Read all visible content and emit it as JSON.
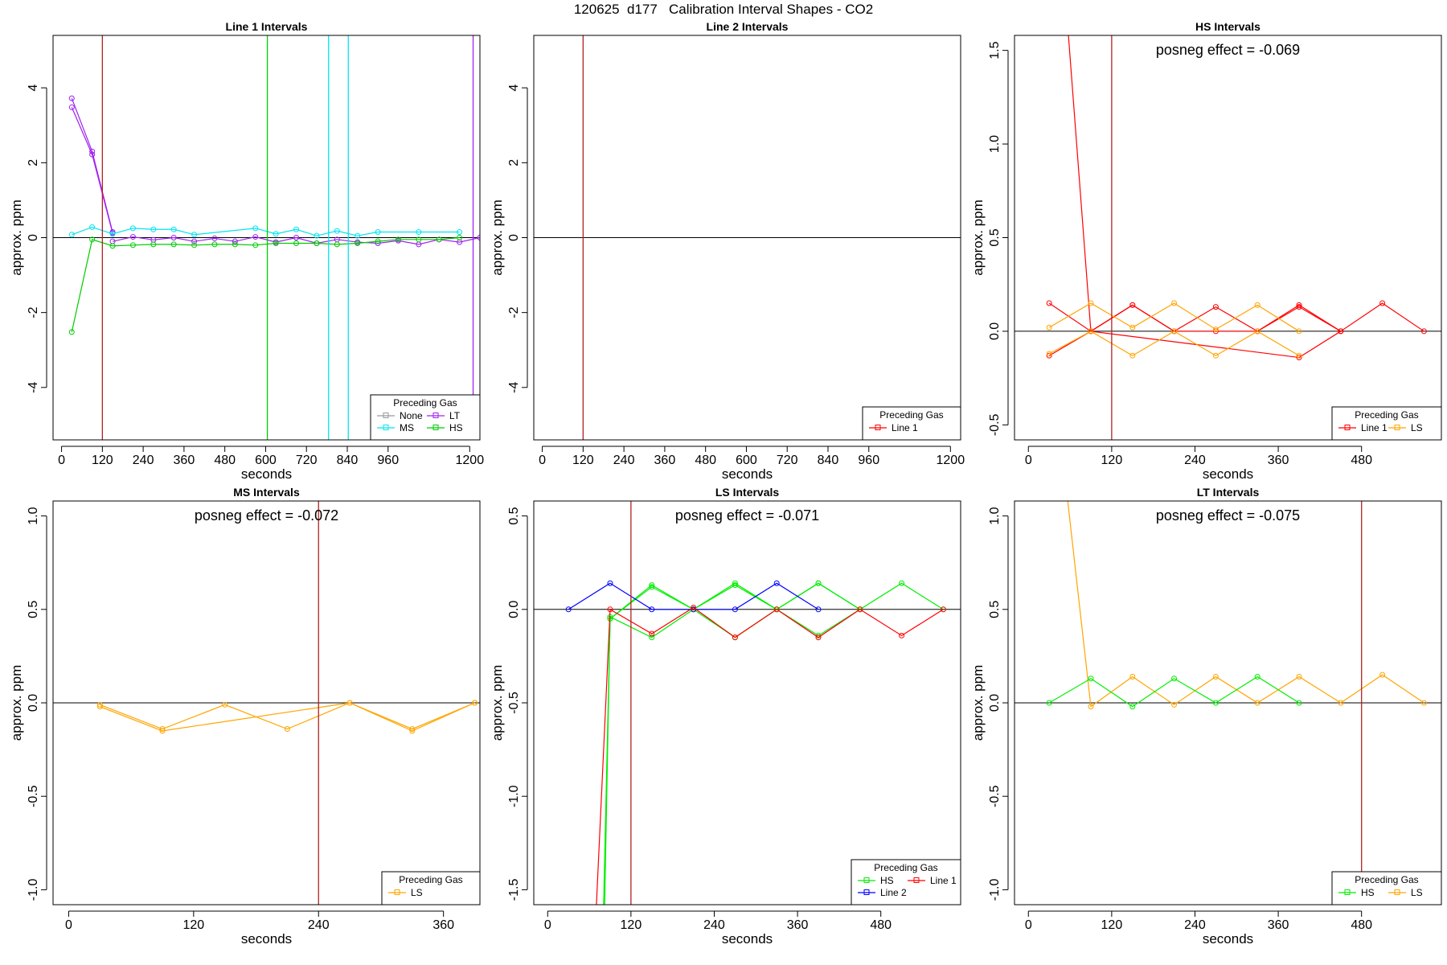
{
  "figure_title": "120625  d177   Calibration Interval Shapes - CO2",
  "chart_data": [
    {
      "type": "line",
      "title": "Line 1 Intervals",
      "xlabel": "seconds",
      "ylabel": "approx. ppm",
      "xlim": [
        -25,
        1230
      ],
      "ylim": [
        -5.4,
        5.4
      ],
      "xticks": [
        0,
        120,
        240,
        360,
        480,
        600,
        720,
        840,
        960,
        1200
      ],
      "xtick_labels": [
        "0",
        "120",
        "240",
        "360",
        "480",
        "600",
        "720",
        "840",
        "960",
        "1200"
      ],
      "yticks": [
        -4,
        -2,
        0,
        2,
        4
      ],
      "ytick_labels": [
        "-4",
        "-2",
        "0",
        "2",
        "4"
      ],
      "vlines": [
        {
          "x": 120,
          "color": "#b22222"
        },
        {
          "x": 605,
          "color": "#00cc00"
        },
        {
          "x": 785,
          "color": "#00e5ee"
        },
        {
          "x": 843,
          "color": "#00e5ee"
        },
        {
          "x": 1210,
          "color": "#a020f0"
        }
      ],
      "series": [
        {
          "name": "LT",
          "color": "#a020f0",
          "x": [
            30,
            90,
            150
          ],
          "y": [
            3.72,
            2.3,
            0.15
          ]
        },
        {
          "name": "LT",
          "color": "#a020f0",
          "x": [
            30,
            90,
            150
          ],
          "y": [
            3.48,
            2.22,
            0.12
          ]
        },
        {
          "name": "LT",
          "color": "#a020f0",
          "x": [
            150,
            210,
            270,
            330,
            390,
            450,
            510,
            570,
            630,
            690,
            750,
            810,
            870,
            930,
            990,
            1050,
            1110,
            1170,
            1230
          ],
          "y": [
            -0.1,
            0.02,
            -0.06,
            0.0,
            -0.1,
            -0.02,
            -0.1,
            0.02,
            -0.12,
            0.0,
            -0.15,
            -0.05,
            -0.12,
            -0.15,
            -0.08,
            -0.18,
            -0.05,
            -0.12,
            0.0
          ]
        },
        {
          "name": "MS",
          "color": "#00e5ee",
          "x": [
            30,
            90,
            150,
            210,
            270,
            330,
            390,
            570,
            630,
            690,
            750,
            810,
            870,
            930,
            1050,
            1170
          ],
          "y": [
            0.08,
            0.28,
            0.1,
            0.25,
            0.22,
            0.22,
            0.08,
            0.25,
            0.1,
            0.22,
            0.05,
            0.18,
            0.05,
            0.15,
            0.15,
            0.15
          ]
        },
        {
          "name": "HS",
          "color": "#00cc00",
          "x": [
            30,
            90,
            150,
            210,
            270,
            330,
            390,
            450,
            510,
            570,
            630,
            690,
            750,
            810,
            870,
            930,
            990,
            1050,
            1110,
            1170
          ],
          "y": [
            -2.52,
            -0.05,
            -0.22,
            -0.2,
            -0.18,
            -0.18,
            -0.2,
            -0.18,
            -0.18,
            -0.2,
            -0.15,
            -0.15,
            -0.15,
            -0.18,
            -0.15,
            -0.1,
            -0.05,
            -0.05,
            -0.05,
            0.0
          ]
        }
      ],
      "legend": {
        "title": "Preceding Gas",
        "position": "bottom-right",
        "columns": 2,
        "entries": [
          {
            "label": "None",
            "color": "#999999"
          },
          {
            "label": "LT",
            "color": "#a020f0"
          },
          {
            "label": "MS",
            "color": "#00e5ee"
          },
          {
            "label": "HS",
            "color": "#00cc00"
          }
        ]
      }
    },
    {
      "type": "line",
      "title": "Line 2 Intervals",
      "xlabel": "seconds",
      "ylabel": "approx. ppm",
      "xlim": [
        -25,
        1230
      ],
      "ylim": [
        -5.4,
        5.4
      ],
      "xticks": [
        0,
        120,
        240,
        360,
        480,
        600,
        720,
        840,
        960,
        1200
      ],
      "xtick_labels": [
        "0",
        "120",
        "240",
        "360",
        "480",
        "600",
        "720",
        "840",
        "960",
        "1200"
      ],
      "yticks": [
        -4,
        -2,
        0,
        2,
        4
      ],
      "ytick_labels": [
        "-4",
        "-2",
        "0",
        "2",
        "4"
      ],
      "vlines": [
        {
          "x": 120,
          "color": "#b22222"
        }
      ],
      "series": [],
      "legend": {
        "title": "Preceding Gas",
        "position": "bottom-right",
        "columns": 1,
        "entries": [
          {
            "label": "Line 1",
            "color": "#ff0000"
          }
        ]
      }
    },
    {
      "type": "line",
      "title": "HS Intervals",
      "xlabel": "seconds",
      "ylabel": "approx. ppm",
      "annotation": "posneg effect = -0.069",
      "xlim": [
        -20,
        595
      ],
      "ylim": [
        -0.58,
        1.58
      ],
      "xticks": [
        0,
        120,
        240,
        360,
        480
      ],
      "xtick_labels": [
        "0",
        "120",
        "240",
        "360",
        "480"
      ],
      "yticks": [
        -0.5,
        0.0,
        0.5,
        1.0,
        1.5
      ],
      "ytick_labels": [
        "-0.5",
        "0.0",
        "0.5",
        "1.0",
        "1.5"
      ],
      "vlines": [
        {
          "x": 120,
          "color": "#b22222"
        }
      ],
      "series": [
        {
          "name": "Line 1",
          "color": "#ff0000",
          "x": [
            30,
            90,
            150,
            210,
            270,
            330,
            390,
            450,
            510,
            570
          ],
          "y": [
            0.15,
            0.0,
            0.14,
            0.0,
            0.13,
            0.0,
            0.13,
            0.0,
            0.15,
            0.0
          ]
        },
        {
          "name": "Line 1",
          "color": "#ff0000",
          "x": [
            30,
            90,
            150,
            210,
            270,
            330,
            390,
            450
          ],
          "y": [
            -0.13,
            0.0,
            0.14,
            0.0,
            0.0,
            0.0,
            0.14,
            0.0
          ]
        },
        {
          "name": "Line 1",
          "color": "#ff0000",
          "x": [
            45,
            90,
            390,
            450
          ],
          "y": [
            2.2,
            0.0,
            -0.14,
            0.0
          ]
        },
        {
          "name": "LS",
          "color": "#ffa500",
          "x": [
            30,
            90,
            150,
            210,
            270,
            330,
            390
          ],
          "y": [
            0.02,
            0.15,
            0.02,
            0.15,
            0.01,
            0.14,
            0.0
          ]
        },
        {
          "name": "LS",
          "color": "#ffa500",
          "x": [
            30,
            90,
            150,
            210,
            270,
            330,
            390
          ],
          "y": [
            -0.12,
            0.0,
            -0.13,
            0.0,
            -0.13,
            0.0,
            -0.13
          ]
        }
      ],
      "legend": {
        "title": "Preceding Gas",
        "position": "bottom-right",
        "columns": 2,
        "entries": [
          {
            "label": "Line 1",
            "color": "#ff0000"
          },
          {
            "label": "LS",
            "color": "#ffa500"
          }
        ]
      }
    },
    {
      "type": "line",
      "title": "MS Intervals",
      "xlabel": "seconds",
      "ylabel": "approx. ppm",
      "annotation": "posneg effect = -0.072",
      "xlim": [
        -15,
        395
      ],
      "ylim": [
        -1.08,
        1.08
      ],
      "xticks": [
        0,
        120,
        240,
        360
      ],
      "xtick_labels": [
        "0",
        "120",
        "240",
        "360"
      ],
      "yticks": [
        -1.0,
        -0.5,
        0.0,
        0.5,
        1.0
      ],
      "ytick_labels": [
        "-1.0",
        "-0.5",
        "0.0",
        "0.5",
        "1.0"
      ],
      "vlines": [
        {
          "x": 240,
          "color": "#b22222"
        }
      ],
      "series": [
        {
          "name": "LS",
          "color": "#ffa500",
          "x": [
            30,
            90,
            150,
            210,
            270,
            330,
            390
          ],
          "y": [
            -0.01,
            -0.14,
            -0.01,
            -0.14,
            0.0,
            -0.14,
            0.0
          ]
        },
        {
          "name": "LS",
          "color": "#ffa500",
          "x": [
            30,
            90,
            270,
            330,
            390
          ],
          "y": [
            -0.02,
            -0.15,
            0.0,
            -0.15,
            0.0
          ]
        }
      ],
      "legend": {
        "title": "Preceding Gas",
        "position": "bottom-right",
        "columns": 1,
        "entries": [
          {
            "label": "LS",
            "color": "#ffa500"
          }
        ]
      }
    },
    {
      "type": "line",
      "title": "LS Intervals",
      "xlabel": "seconds",
      "ylabel": "approx. ppm",
      "annotation": "posneg effect = -0.071",
      "xlim": [
        -20,
        595
      ],
      "ylim": [
        -1.58,
        0.58
      ],
      "xticks": [
        0,
        120,
        240,
        360,
        480
      ],
      "xtick_labels": [
        "0",
        "120",
        "240",
        "360",
        "480"
      ],
      "yticks": [
        -1.5,
        -1.0,
        -0.5,
        0.0,
        0.5
      ],
      "ytick_labels": [
        "-1.5",
        "-1.0",
        "-0.5",
        "0.0",
        "0.5"
      ],
      "vlines": [
        {
          "x": 120,
          "color": "#b22222"
        }
      ],
      "series": [
        {
          "name": "HS",
          "color": "#00ee00",
          "x": [
            78,
            90,
            150,
            210,
            270,
            330,
            390,
            450,
            510,
            570
          ],
          "y": [
            -2.0,
            -0.05,
            0.13,
            0.0,
            0.14,
            0.0,
            0.14,
            0.0,
            0.14,
            0.0
          ]
        },
        {
          "name": "HS",
          "color": "#00ee00",
          "x": [
            80,
            90,
            150,
            210,
            270,
            330,
            390,
            450
          ],
          "y": [
            -2.0,
            -0.04,
            -0.15,
            0.0,
            0.13,
            0.0,
            -0.14,
            0.0
          ]
        },
        {
          "name": "HS",
          "color": "#00ee00",
          "x": [
            90,
            150,
            210,
            270,
            330,
            390,
            450
          ],
          "y": [
            -0.05,
            0.12,
            0.0,
            -0.15,
            0.0,
            0.14,
            0.0
          ]
        },
        {
          "name": "Line 2",
          "color": "#0000ff",
          "x": [
            30,
            90,
            150,
            210,
            270,
            330,
            390
          ],
          "y": [
            0.0,
            0.14,
            0.0,
            0.0,
            0.0,
            0.14,
            0.0
          ]
        },
        {
          "name": "Line 1",
          "color": "#ff0000",
          "x": [
            65,
            90,
            150,
            210,
            270,
            330,
            390,
            450,
            510,
            570
          ],
          "y": [
            -2.0,
            0.0,
            -0.13,
            0.01,
            -0.15,
            0.0,
            -0.15,
            0.0,
            -0.14,
            0.0
          ]
        }
      ],
      "legend": {
        "title": "Preceding Gas",
        "position": "bottom-right",
        "columns": 2,
        "entries": [
          {
            "label": "HS",
            "color": "#00ee00"
          },
          {
            "label": "Line 1",
            "color": "#ff0000"
          },
          {
            "label": "Line 2",
            "color": "#0000ff"
          }
        ]
      }
    },
    {
      "type": "line",
      "title": "LT Intervals",
      "xlabel": "seconds",
      "ylabel": "approx. ppm",
      "annotation": "posneg effect = -0.075",
      "xlim": [
        -20,
        595
      ],
      "ylim": [
        -1.08,
        1.08
      ],
      "xticks": [
        0,
        120,
        240,
        360,
        480
      ],
      "xtick_labels": [
        "0",
        "120",
        "240",
        "360",
        "480"
      ],
      "yticks": [
        -1.0,
        -0.5,
        0.0,
        0.5,
        1.0
      ],
      "ytick_labels": [
        "-1.0",
        "-0.5",
        "0.0",
        "0.5",
        "1.0"
      ],
      "vlines": [
        {
          "x": 480,
          "color": "#b22222"
        }
      ],
      "series": [
        {
          "name": "LS",
          "color": "#ffa500",
          "x": [
            50,
            90,
            150,
            210,
            270,
            330,
            390,
            450,
            510,
            570
          ],
          "y": [
            1.3,
            -0.02,
            0.14,
            -0.01,
            0.14,
            0.0,
            0.14,
            0.0,
            0.15,
            0.0
          ]
        },
        {
          "name": "HS",
          "color": "#00ee00",
          "x": [
            30,
            90,
            150,
            210,
            270,
            330,
            390
          ],
          "y": [
            0.0,
            0.13,
            -0.02,
            0.13,
            0.0,
            0.14,
            0.0
          ]
        }
      ],
      "legend": {
        "title": "Preceding Gas",
        "position": "bottom-right",
        "columns": 2,
        "entries": [
          {
            "label": "HS",
            "color": "#00ee00"
          },
          {
            "label": "LS",
            "color": "#ffa500"
          }
        ]
      }
    }
  ]
}
